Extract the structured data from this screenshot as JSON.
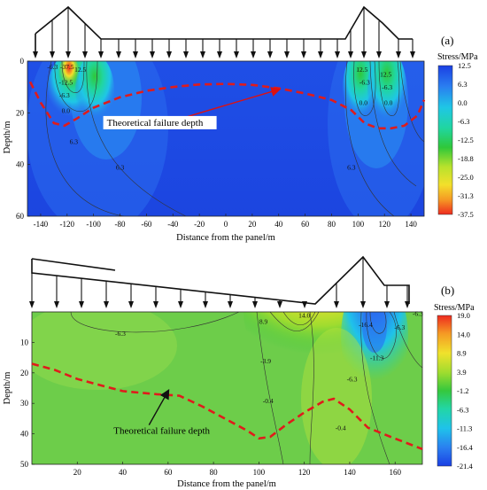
{
  "chart_data": [
    {
      "type": "heatmap",
      "panel_label": "(a)",
      "xlabel": "Distance from the panel/m",
      "ylabel": "Depth/m",
      "xlim": [
        -150,
        150
      ],
      "ylim": [
        0,
        60
      ],
      "x_ticks": [
        -140,
        -120,
        -100,
        -80,
        -60,
        -40,
        -20,
        0,
        20,
        40,
        60,
        80,
        100,
        120,
        140
      ],
      "y_ticks": [
        0,
        20,
        40,
        60
      ],
      "colorbar": {
        "title": "Stress/MPa",
        "ticks": [
          12.5,
          6.3,
          0.0,
          -6.3,
          -12.5,
          -18.8,
          -25.0,
          -31.3,
          -37.5
        ]
      },
      "contour_labels": [
        {
          "text": "-6.3",
          "x": -131,
          "y": 2
        },
        {
          "text": "-37.5",
          "x": -120,
          "y": 2
        },
        {
          "text": "12.5",
          "x": -110,
          "y": 3
        },
        {
          "text": "-12.5",
          "x": -121,
          "y": 8
        },
        {
          "text": "-6.3",
          "x": -122,
          "y": 13
        },
        {
          "text": "0.0",
          "x": -121,
          "y": 19
        },
        {
          "text": "6.3",
          "x": -115,
          "y": 31
        },
        {
          "text": "12.5",
          "x": 103,
          "y": 3
        },
        {
          "text": "12.5",
          "x": 121,
          "y": 5
        },
        {
          "text": "-6.3",
          "x": 105,
          "y": 8
        },
        {
          "text": "-6.3",
          "x": 122,
          "y": 10
        },
        {
          "text": "0.0",
          "x": 104,
          "y": 16
        },
        {
          "text": "0.0",
          "x": 123,
          "y": 16
        },
        {
          "text": "6.3",
          "x": -80,
          "y": 41
        },
        {
          "text": "6.3",
          "x": 95,
          "y": 41
        }
      ],
      "failure_depth": {
        "name": "Theoretical failure depth",
        "x": [
          -148,
          -140,
          -130,
          -122,
          -112,
          -100,
          -80,
          -60,
          -40,
          -20,
          0,
          20,
          40,
          60,
          80,
          95,
          105,
          115,
          125,
          135,
          145,
          150
        ],
        "y": [
          8,
          16,
          24,
          25,
          22,
          18,
          14,
          11.5,
          10,
          9,
          8.8,
          9.2,
          10.5,
          12.5,
          15,
          19,
          24,
          26,
          26,
          25,
          21,
          15
        ]
      },
      "annotation": {
        "text": "Theoretical failure depth",
        "x": -90,
        "y": 25
      },
      "annotation_arrow_to": {
        "x": 40,
        "y": 11
      }
    },
    {
      "type": "heatmap",
      "panel_label": "(b)",
      "xlabel": "Distance from the panel/m",
      "ylabel": "Depth/m",
      "xlim": [
        0,
        172
      ],
      "ylim": [
        0,
        50
      ],
      "x_ticks": [
        20,
        40,
        60,
        80,
        100,
        120,
        140,
        160
      ],
      "y_ticks": [
        10,
        20,
        30,
        40,
        50
      ],
      "colorbar": {
        "title": "Stress/MPa",
        "ticks": [
          19.0,
          14.0,
          8.9,
          3.9,
          -1.2,
          -6.3,
          -11.3,
          -16.4,
          -21.4
        ]
      },
      "contour_labels": [
        {
          "text": "-6.3",
          "x": 39,
          "y": 7
        },
        {
          "text": "8.9",
          "x": 102,
          "y": 3
        },
        {
          "text": "14.0",
          "x": 120,
          "y": 1
        },
        {
          "text": "-3.9",
          "x": 103,
          "y": 16
        },
        {
          "text": "-0.4",
          "x": 104,
          "y": 29
        },
        {
          "text": "-16.4",
          "x": 147,
          "y": 4
        },
        {
          "text": "-11.3",
          "x": 152,
          "y": 15
        },
        {
          "text": "-6.3",
          "x": 162,
          "y": 5
        },
        {
          "text": "-6.3",
          "x": 141,
          "y": 22
        },
        {
          "text": "-0.4",
          "x": 136,
          "y": 38
        },
        {
          "text": "-6.3",
          "x": 170,
          "y": 0.5
        }
      ],
      "failure_depth": {
        "name": "Theoretical failure depth",
        "x": [
          0,
          10,
          20,
          30,
          40,
          55,
          65,
          75,
          85,
          95,
          100,
          105,
          112,
          120,
          128,
          133,
          140,
          148,
          158,
          172
        ],
        "y": [
          17,
          19,
          22,
          24,
          26,
          27,
          27.5,
          31,
          35,
          39,
          41.5,
          41,
          37,
          33,
          29.5,
          28.5,
          32,
          38,
          41,
          45
        ]
      },
      "annotation": {
        "text": "Theoretical failure depth",
        "x": 36,
        "y": 40
      },
      "annotation_arrow_to": {
        "x": 60,
        "y": 26
      }
    }
  ],
  "colorbar_a_ticks": [
    "12.5",
    "6.3",
    "0.0",
    "-6.3",
    "-12.5",
    "-18.8",
    "-25.0",
    "-31.3",
    "-37.5"
  ],
  "colorbar_b_ticks": [
    "19.0",
    "14.0",
    "8.9",
    "3.9",
    "-1.2",
    "-6.3",
    "-11.3",
    "-16.4",
    "-21.4"
  ]
}
